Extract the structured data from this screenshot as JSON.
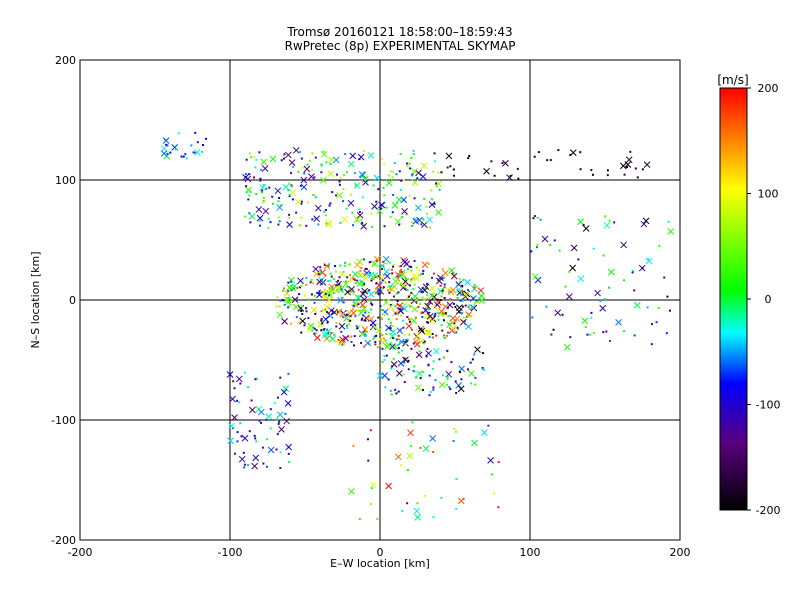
{
  "chart_data": {
    "type": "scatter",
    "title": "Tromsø 20160121 18:58:00–18:59:43",
    "subtitle": "RwPretec (8p) EXPERIMENTAL SKYMAP",
    "xlabel": "E–W location [km]",
    "ylabel": "N–S location [km]",
    "xlim": [
      -200,
      200
    ],
    "ylim": [
      -200,
      200
    ],
    "xticks": [
      "-200",
      "-100",
      "0",
      "100",
      "200"
    ],
    "yticks": [
      "-200",
      "-100",
      "0",
      "100",
      "200"
    ],
    "grid": true,
    "markers": [
      "x",
      "dot"
    ],
    "colorbar": {
      "label": "[m/s]",
      "range": [
        -200,
        200
      ],
      "ticks": [
        "200",
        "100",
        "0",
        "-100",
        "-200"
      ],
      "colormap": [
        "#000000",
        "#5a0080",
        "#0000ff",
        "#00ffff",
        "#00ff00",
        "#ffff00",
        "#ff0000"
      ]
    },
    "clusters": [
      {
        "region": "north-west",
        "x": [
          -145,
          -115
        ],
        "y": [
          110,
          145
        ],
        "velocity": [
          -120,
          0
        ]
      },
      {
        "region": "north-band",
        "x": [
          -90,
          40
        ],
        "y": [
          60,
          125
        ],
        "velocity": [
          -150,
          100
        ]
      },
      {
        "region": "north-east",
        "x": [
          40,
          185
        ],
        "y": [
          100,
          125
        ],
        "velocity": [
          -200,
          -160
        ]
      },
      {
        "region": "east",
        "x": [
          100,
          195
        ],
        "y": [
          -40,
          70
        ],
        "velocity": [
          -200,
          50
        ]
      },
      {
        "region": "center",
        "x": [
          -70,
          70
        ],
        "y": [
          -40,
          35
        ],
        "velocity": [
          -200,
          200
        ]
      },
      {
        "region": "south-center",
        "x": [
          0,
          70
        ],
        "y": [
          -80,
          -40
        ],
        "velocity": [
          -200,
          50
        ]
      },
      {
        "region": "south-west",
        "x": [
          -100,
          -60
        ],
        "y": [
          -140,
          -60
        ],
        "velocity": [
          -150,
          0
        ]
      },
      {
        "region": "south",
        "x": [
          -20,
          80
        ],
        "y": [
          -185,
          -100
        ],
        "velocity": [
          -100,
          200
        ]
      }
    ]
  }
}
